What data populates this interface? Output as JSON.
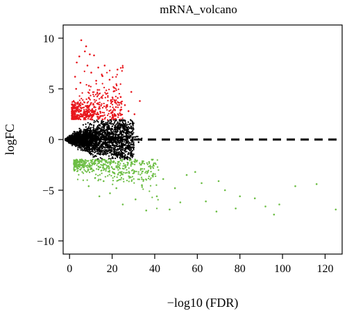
{
  "chart_data": {
    "type": "scatter",
    "title": "mRNA_volcano",
    "xlabel": "−log10 (FDR)",
    "ylabel": "logFC",
    "xlim": [
      -3,
      128
    ],
    "ylim": [
      -11.3,
      11.3
    ],
    "xticks": [
      0,
      20,
      40,
      60,
      80,
      100,
      120
    ],
    "yticks": [
      -10,
      -5,
      0,
      5,
      10
    ],
    "threshold_line": {
      "y": 0,
      "style": "dashed",
      "color": "#000000"
    },
    "grid": false,
    "legend": "none",
    "colors": {
      "up": "#e8161c",
      "down": "#6dbe45",
      "not_significant": "#000000",
      "axes": "#000000"
    },
    "series": [
      {
        "group": "up",
        "points": [
          [
            5.5,
            9.8
          ],
          [
            7.8,
            9.2
          ],
          [
            9.5,
            8.4
          ],
          [
            11.5,
            8.3
          ],
          [
            7.2,
            8.7
          ],
          [
            16.5,
            7.3
          ],
          [
            22.5,
            6.9
          ],
          [
            25,
            7.1
          ],
          [
            29,
            4.7
          ],
          [
            33,
            3.8
          ],
          [
            30.5,
            2.5
          ],
          [
            26,
            3.4
          ],
          [
            24,
            4.2
          ],
          [
            21,
            5.1
          ],
          [
            18.8,
            5.9
          ],
          [
            15.3,
            6.3
          ],
          [
            13.5,
            7.1
          ],
          [
            12.5,
            5.8
          ],
          [
            10.2,
            6.6
          ],
          [
            8.4,
            7.3
          ],
          [
            4.6,
            8.2
          ],
          [
            3.4,
            7.6
          ],
          [
            2.6,
            6.2
          ],
          [
            3.1,
            5.0
          ],
          [
            5.1,
            5.6
          ],
          [
            9.1,
            5.3
          ],
          [
            13.2,
            4.9
          ],
          [
            17.2,
            4.5
          ],
          [
            19.5,
            3.9
          ],
          [
            21.8,
            3.2
          ],
          [
            23.6,
            2.6
          ],
          [
            27.7,
            2.8
          ],
          [
            20.2,
            2.4
          ]
        ]
      },
      {
        "group": "down",
        "points": [
          [
            106,
            -4.6
          ],
          [
            116,
            -4.4
          ],
          [
            125,
            -6.9
          ],
          [
            96,
            -7.4
          ],
          [
            98.5,
            -6.4
          ],
          [
            92,
            -6.6
          ],
          [
            87,
            -5.8
          ],
          [
            80,
            -5.6
          ],
          [
            78,
            -6.8
          ],
          [
            73,
            -5.0
          ],
          [
            70,
            -4.1
          ],
          [
            69,
            -7.1
          ],
          [
            64,
            -6.1
          ],
          [
            62,
            -4.3
          ],
          [
            59,
            -3.2
          ],
          [
            55,
            -3.5
          ],
          [
            52,
            -6.2
          ],
          [
            49.5,
            -4.8
          ],
          [
            47,
            -6.9
          ],
          [
            44,
            -3.9
          ],
          [
            41,
            -5.6
          ],
          [
            38,
            -2.7
          ],
          [
            36,
            -7.0
          ],
          [
            34,
            -4.5
          ],
          [
            31,
            -5.9
          ],
          [
            28,
            -3.3
          ],
          [
            25,
            -6.4
          ],
          [
            22,
            -4.8
          ],
          [
            19,
            -5.3
          ],
          [
            16,
            -4.1
          ],
          [
            14,
            -5.6
          ],
          [
            12,
            -3.8
          ],
          [
            9,
            -4.6
          ]
        ]
      }
    ]
  }
}
